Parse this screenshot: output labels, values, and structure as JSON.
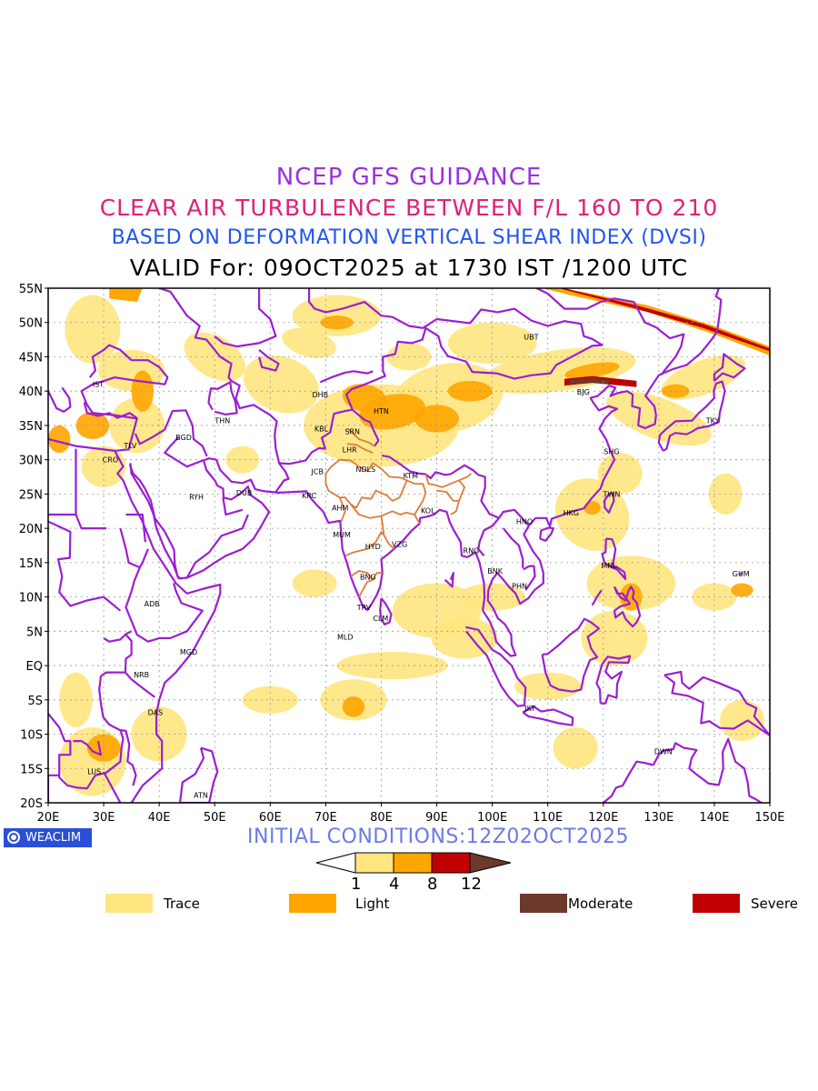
{
  "header": {
    "line1": "NCEP GFS GUIDANCE",
    "line2": "CLEAR AIR TURBULENCE BETWEEN F/L 160 TO 210",
    "line3": "BASED ON DEFORMATION VERTICAL SHEAR INDEX (DVSI)",
    "line4": "VALID For: 09OCT2025 at 1730 IST /1200 UTC"
  },
  "colors": {
    "title1": "#9b30e0",
    "title2": "#e0207a",
    "title3": "#2255ee",
    "coastline": "#9b1fd0",
    "india_states": "#e07b39",
    "trace": "#ffe680",
    "light": "#ffa500",
    "severe": "#c00000",
    "moderate": "#6b3a2a",
    "grid": "#999999"
  },
  "map": {
    "lat_labels": [
      "55N",
      "50N",
      "45N",
      "40N",
      "35N",
      "30N",
      "25N",
      "20N",
      "15N",
      "10N",
      "5N",
      "EQ",
      "5S",
      "10S",
      "15S",
      "20S"
    ],
    "lon_labels": [
      "20E",
      "30E",
      "40E",
      "50E",
      "60E",
      "70E",
      "80E",
      "90E",
      "100E",
      "110E",
      "120E",
      "130E",
      "140E",
      "150E"
    ],
    "lon_range": [
      20,
      150
    ],
    "lat_range": [
      -20,
      55
    ],
    "stations": [
      {
        "code": "UBT",
        "lon": 107,
        "lat": 47.9
      },
      {
        "code": "IST",
        "lon": 29,
        "lat": 41
      },
      {
        "code": "BJG",
        "lon": 116.4,
        "lat": 39.9
      },
      {
        "code": "DHB",
        "lon": 69,
        "lat": 39.5
      },
      {
        "code": "HTN",
        "lon": 80,
        "lat": 37.1
      },
      {
        "code": "THN",
        "lon": 51.4,
        "lat": 35.7
      },
      {
        "code": "KBL",
        "lon": 69.2,
        "lat": 34.5
      },
      {
        "code": "SRN",
        "lon": 74.8,
        "lat": 34.1
      },
      {
        "code": "TKY",
        "lon": 139.7,
        "lat": 35.7
      },
      {
        "code": "BGD",
        "lon": 44.4,
        "lat": 33.3
      },
      {
        "code": "TLV",
        "lon": 34.8,
        "lat": 32.1
      },
      {
        "code": "LHR",
        "lon": 74.3,
        "lat": 31.5
      },
      {
        "code": "SHG",
        "lon": 121.5,
        "lat": 31.2
      },
      {
        "code": "CRO",
        "lon": 31.2,
        "lat": 30
      },
      {
        "code": "JCB",
        "lon": 68.5,
        "lat": 28.3
      },
      {
        "code": "NDLS",
        "lon": 77.2,
        "lat": 28.6
      },
      {
        "code": "KTM",
        "lon": 85.3,
        "lat": 27.7
      },
      {
        "code": "RYH",
        "lon": 46.7,
        "lat": 24.6
      },
      {
        "code": "DUB",
        "lon": 55.3,
        "lat": 25.2
      },
      {
        "code": "TWN",
        "lon": 121.5,
        "lat": 25
      },
      {
        "code": "KRC",
        "lon": 67,
        "lat": 24.8
      },
      {
        "code": "AHM",
        "lon": 72.6,
        "lat": 23
      },
      {
        "code": "KOL",
        "lon": 88.4,
        "lat": 22.6
      },
      {
        "code": "HKG",
        "lon": 114.2,
        "lat": 22.3
      },
      {
        "code": "HNO",
        "lon": 105.8,
        "lat": 21
      },
      {
        "code": "MUM",
        "lon": 72.9,
        "lat": 19.1
      },
      {
        "code": "HYD",
        "lon": 78.5,
        "lat": 17.4
      },
      {
        "code": "VZG",
        "lon": 83.3,
        "lat": 17.7
      },
      {
        "code": "RNG",
        "lon": 96.2,
        "lat": 16.8
      },
      {
        "code": "MNL",
        "lon": 121,
        "lat": 14.6
      },
      {
        "code": "BNK",
        "lon": 100.5,
        "lat": 13.8
      },
      {
        "code": "GUM",
        "lon": 144.8,
        "lat": 13.4
      },
      {
        "code": "BNG",
        "lon": 77.6,
        "lat": 12.9
      },
      {
        "code": "PHN",
        "lon": 104.9,
        "lat": 11.6
      },
      {
        "code": "ADB",
        "lon": 38.7,
        "lat": 9
      },
      {
        "code": "TRV",
        "lon": 76.9,
        "lat": 8.5
      },
      {
        "code": "CLM",
        "lon": 79.9,
        "lat": 6.9
      },
      {
        "code": "MLD",
        "lon": 73.5,
        "lat": 4.2
      },
      {
        "code": "MGD",
        "lon": 45.3,
        "lat": 2
      },
      {
        "code": "NRB",
        "lon": 36.8,
        "lat": -1.3
      },
      {
        "code": "JKT",
        "lon": 106.8,
        "lat": -6.2
      },
      {
        "code": "DAS",
        "lon": 39.3,
        "lat": -6.8
      },
      {
        "code": "DWN",
        "lon": 130.8,
        "lat": -12.5
      },
      {
        "code": "LUS",
        "lon": 28.3,
        "lat": -15.4
      },
      {
        "code": "ATN",
        "lon": 47.5,
        "lat": -18.9
      }
    ]
  },
  "footer": {
    "brand": "WEACLIM",
    "brand_icon": "weaclim-logo-icon",
    "initial_conditions": "INITIAL CONDITIONS:12Z02OCT2025"
  },
  "colorbar": {
    "ticks": [
      "1",
      "4",
      "8",
      "12"
    ]
  },
  "legend": [
    {
      "label": "Trace",
      "color": "#ffe680"
    },
    {
      "label": "Light",
      "color": "#ffa500"
    },
    {
      "label": "Moderate",
      "color": "#6b3a2a"
    },
    {
      "label": "Severe",
      "color": "#c00000"
    }
  ]
}
